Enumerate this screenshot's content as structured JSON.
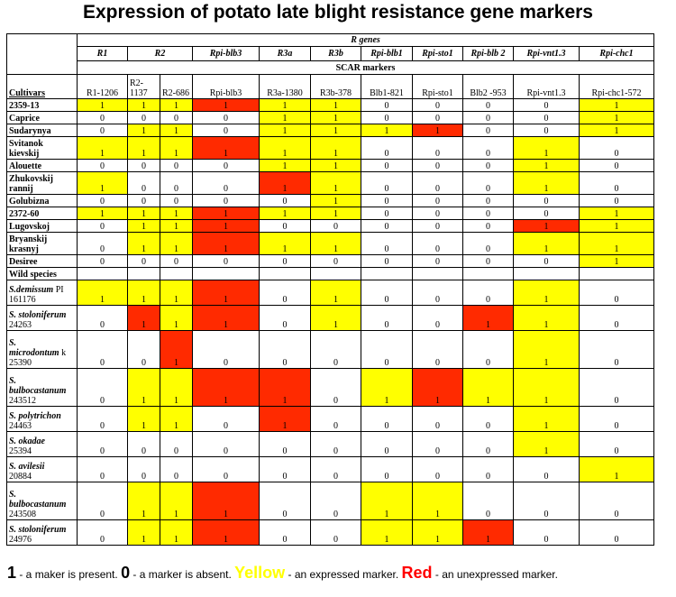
{
  "title": "Expression of potato late blight resistance gene markers",
  "header": {
    "r_genes": "R genes",
    "r_genes_italic": "R",
    "r_genes_rest": " genes",
    "scar_markers": "SCAR markers",
    "cultivars_label": "Cultivars",
    "gene_groups": [
      {
        "label": "R1",
        "span": 1
      },
      {
        "label": "R2",
        "span": 2
      },
      {
        "label": "Rpi-blb3",
        "span": 1
      },
      {
        "label": "R3a",
        "span": 1
      },
      {
        "label": "R3b",
        "span": 1
      },
      {
        "label": "Rpi-blb1",
        "span": 1
      },
      {
        "label": "Rpi-sto1",
        "span": 1
      },
      {
        "label": "Rpi-blb 2",
        "span": 1
      },
      {
        "label": "Rpi-vnt1.3",
        "span": 1
      },
      {
        "label": "Rpi-chc1",
        "span": 1
      }
    ],
    "markers": [
      "R1-1206",
      "R2-1137",
      "R2-686",
      "Rpi-blb3",
      "R3a-1380",
      "R3b-378",
      "Blb1-821",
      "Rpi-sto1",
      "Blb2 -953",
      "Rpi-vnt1.3",
      "Rpi-chc1-572"
    ]
  },
  "cultivars": [
    {
      "name_lines": [
        "2359-13"
      ],
      "values": [
        "1",
        "1",
        "1",
        "1",
        "1",
        "1",
        "0",
        "0",
        "0",
        "0",
        "1"
      ],
      "colors": [
        "y",
        "y",
        "y",
        "r",
        "y",
        "y",
        "",
        "",
        "",
        "",
        "y"
      ]
    },
    {
      "name_lines": [
        "Caprice"
      ],
      "values": [
        "0",
        "0",
        "0",
        "0",
        "1",
        "1",
        "0",
        "0",
        "0",
        "0",
        "1"
      ],
      "colors": [
        "",
        "",
        "",
        "",
        "y",
        "y",
        "",
        "",
        "",
        "",
        "y"
      ]
    },
    {
      "name_lines": [
        "Sudarynya"
      ],
      "values": [
        "0",
        "1",
        "1",
        "0",
        "1",
        "1",
        "1",
        "1",
        "0",
        "0",
        "1"
      ],
      "colors": [
        "",
        "y",
        "y",
        "",
        "y",
        "y",
        "y",
        "r",
        "",
        "",
        "y"
      ]
    },
    {
      "name_lines": [
        "Svitanok",
        "kievskij"
      ],
      "values": [
        "1",
        "1",
        "1",
        "1",
        "1",
        "1",
        "0",
        "0",
        "0",
        "1",
        "0"
      ],
      "colors": [
        "y",
        "y",
        "y",
        "r",
        "y",
        "y",
        "",
        "",
        "",
        "y",
        ""
      ]
    },
    {
      "name_lines": [
        "Alouette"
      ],
      "values": [
        "0",
        "0",
        "0",
        "0",
        "1",
        "1",
        "0",
        "0",
        "0",
        "1",
        "0"
      ],
      "colors": [
        "",
        "",
        "",
        "",
        "y",
        "y",
        "",
        "",
        "",
        "y",
        ""
      ]
    },
    {
      "name_lines": [
        "Zhukovskij",
        "rannij"
      ],
      "values": [
        "1",
        "0",
        "0",
        "0",
        "1",
        "1",
        "0",
        "0",
        "0",
        "1",
        "0"
      ],
      "colors": [
        "y",
        "",
        "",
        "",
        "r",
        "y",
        "",
        "",
        "",
        "y",
        ""
      ]
    },
    {
      "name_lines": [
        "Golubizna"
      ],
      "values": [
        "0",
        "0",
        "0",
        "0",
        "0",
        "1",
        "0",
        "0",
        "0",
        "0",
        "0"
      ],
      "colors": [
        "",
        "",
        "",
        "",
        "",
        "y",
        "",
        "",
        "",
        "",
        ""
      ]
    },
    {
      "name_lines": [
        "2372-60"
      ],
      "values": [
        "1",
        "1",
        "1",
        "1",
        "1",
        "1",
        "0",
        "0",
        "0",
        "0",
        "1"
      ],
      "colors": [
        "y",
        "y",
        "y",
        "r",
        "y",
        "y",
        "",
        "",
        "",
        "",
        "y"
      ]
    },
    {
      "name_lines": [
        "Lugovskoj"
      ],
      "values": [
        "0",
        "1",
        "1",
        "1",
        "0",
        "0",
        "0",
        "0",
        "0",
        "1",
        "1"
      ],
      "colors": [
        "",
        "y",
        "y",
        "r",
        "",
        "",
        "",
        "",
        "",
        "r",
        "y"
      ]
    },
    {
      "name_lines": [
        "Bryanskij",
        "krasnyj"
      ],
      "values": [
        "0",
        "1",
        "1",
        "1",
        "1",
        "1",
        "0",
        "0",
        "0",
        "1",
        "1"
      ],
      "colors": [
        "",
        "y",
        "y",
        "r",
        "y",
        "y",
        "",
        "",
        "",
        "y",
        "y"
      ]
    },
    {
      "name_lines": [
        "Desiree"
      ],
      "values": [
        "0",
        "0",
        "0",
        "0",
        "0",
        "0",
        "0",
        "0",
        "0",
        "0",
        "1"
      ],
      "colors": [
        "",
        "",
        "",
        "",
        "",
        "",
        "",
        "",
        "",
        "",
        "y"
      ]
    }
  ],
  "wild_species_label": "Wild species",
  "wild_species": [
    {
      "name_italic": "S.demissum",
      "name_rest": " PI",
      "accession": "161176",
      "values": [
        "1",
        "1",
        "1",
        "1",
        "0",
        "1",
        "0",
        "0",
        "0",
        "1",
        "0"
      ],
      "colors": [
        "y",
        "y",
        "y",
        "r",
        "",
        "y",
        "",
        "",
        "",
        "y",
        ""
      ]
    },
    {
      "name_italic": "S. stoloniferum",
      "name_rest": "",
      "accession": "24263",
      "values": [
        "0",
        "1",
        "1",
        "1",
        "0",
        "1",
        "0",
        "0",
        "1",
        "1",
        "0"
      ],
      "colors": [
        "",
        "r",
        "y",
        "r",
        "",
        "y",
        "",
        "",
        "r",
        "y",
        ""
      ]
    },
    {
      "name_italic": "S.",
      "name_italic2": "microdontum",
      "name_rest": " k",
      "accession": "25390",
      "values": [
        "0",
        "0",
        "1",
        "0",
        "0",
        "0",
        "0",
        "0",
        "0",
        "1",
        "0"
      ],
      "colors": [
        "",
        "",
        "r",
        "",
        "",
        "",
        "",
        "",
        "",
        "y",
        ""
      ]
    },
    {
      "name_italic": "S.",
      "name_italic2": "bulbocastanum",
      "name_rest": "",
      "accession": "243512",
      "values": [
        "0",
        "1",
        "1",
        "1",
        "1",
        "0",
        "1",
        "1",
        "1",
        "1",
        "0"
      ],
      "colors": [
        "",
        "y",
        "y",
        "r",
        "r",
        "",
        "y",
        "r",
        "y",
        "y",
        ""
      ]
    },
    {
      "name_italic": "S. polytrichon",
      "name_rest": "",
      "accession": "24463",
      "values": [
        "0",
        "1",
        "1",
        "0",
        "1",
        "0",
        "0",
        "0",
        "0",
        "1",
        "0"
      ],
      "colors": [
        "",
        "y",
        "y",
        "",
        "r",
        "",
        "",
        "",
        "",
        "y",
        ""
      ]
    },
    {
      "name_italic": "S. okadae",
      "name_rest": "",
      "accession": "25394",
      "values": [
        "0",
        "0",
        "0",
        "0",
        "0",
        "0",
        "0",
        "0",
        "0",
        "1",
        "0"
      ],
      "colors": [
        "",
        "",
        "",
        "",
        "",
        "",
        "",
        "",
        "",
        "y",
        ""
      ]
    },
    {
      "name_italic": "S. avilesii",
      "name_rest": "",
      "accession": "20884",
      "values": [
        "0",
        "0",
        "0",
        "0",
        "0",
        "0",
        "0",
        "0",
        "0",
        "0",
        "1"
      ],
      "colors": [
        "",
        "",
        "",
        "",
        "",
        "",
        "",
        "",
        "",
        "",
        "y"
      ]
    },
    {
      "name_italic": "S.",
      "name_italic2": "bulbocastanum",
      "name_rest": "",
      "accession": "243508",
      "values": [
        "0",
        "1",
        "1",
        "1",
        "0",
        "0",
        "1",
        "1",
        "0",
        "0",
        "0"
      ],
      "colors": [
        "",
        "y",
        "y",
        "r",
        "",
        "",
        "y",
        "y",
        "",
        "",
        ""
      ]
    },
    {
      "name_italic": "S. stoloniferum",
      "name_rest": "",
      "accession": "24976",
      "values": [
        "0",
        "1",
        "1",
        "1",
        "0",
        "0",
        "1",
        "1",
        "1",
        "0",
        "0"
      ],
      "colors": [
        "",
        "y",
        "y",
        "r",
        "",
        "",
        "y",
        "y",
        "r",
        "",
        ""
      ]
    }
  ],
  "legend": {
    "one": "1",
    "one_text": " - a maker is present. ",
    "zero": "0",
    "zero_text": " - a marker is absent. ",
    "yellow": "Yellow",
    "yellow_text": " - an expressed marker. ",
    "red": "Red",
    "red_text": " - an unexpressed marker."
  },
  "colors": {
    "yellow": "#ffff00",
    "red": "#ff2a00"
  }
}
